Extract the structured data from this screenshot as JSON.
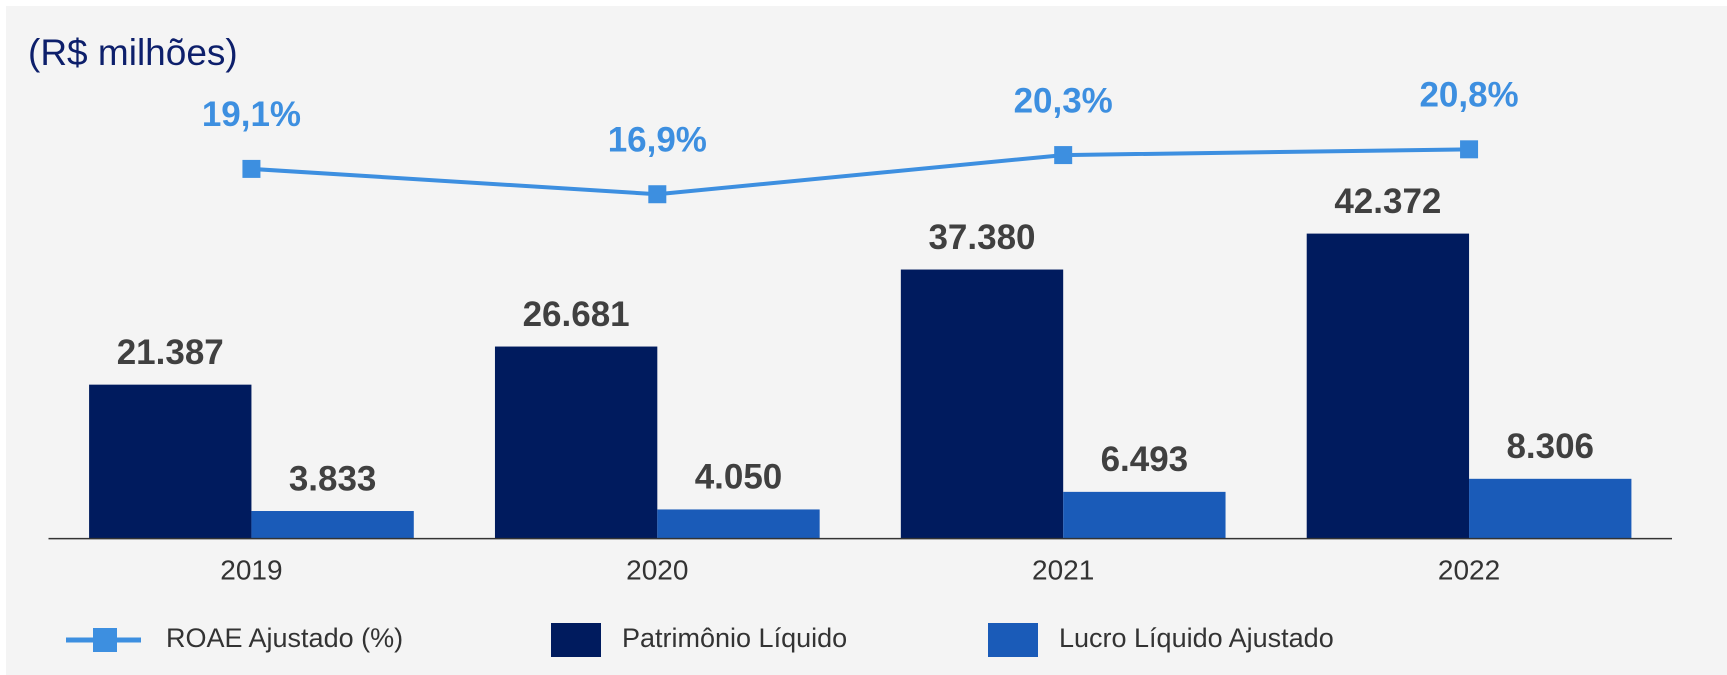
{
  "chart_data": {
    "type": "bar",
    "title": "(R$ milhões)",
    "categories": [
      "2019",
      "2020",
      "2021",
      "2022"
    ],
    "ylim": [
      0,
      56000
    ],
    "y2lim": [
      -13,
      22
    ],
    "series": [
      {
        "name": "ROAE Ajustado (%)",
        "type": "line",
        "axis": "y2",
        "color": "#3d8fe0",
        "values": [
          19.1,
          16.9,
          20.3,
          20.8
        ],
        "value_labels": [
          "19,1%",
          "16,9%",
          "20,3%",
          "20,8%"
        ]
      },
      {
        "name": "Patrimônio Líquido",
        "type": "bar",
        "color": "#001b5e",
        "values": [
          21387,
          26681,
          37380,
          42372
        ],
        "value_labels": [
          "21.387",
          "26.681",
          "37.380",
          "42.372"
        ]
      },
      {
        "name": "Lucro Líquido Ajustado",
        "type": "bar",
        "color": "#1a5bb8",
        "values": [
          3833,
          4050,
          6493,
          8306
        ],
        "value_labels": [
          "3.833",
          "4.050",
          "6.493",
          "8.306"
        ]
      }
    ]
  }
}
